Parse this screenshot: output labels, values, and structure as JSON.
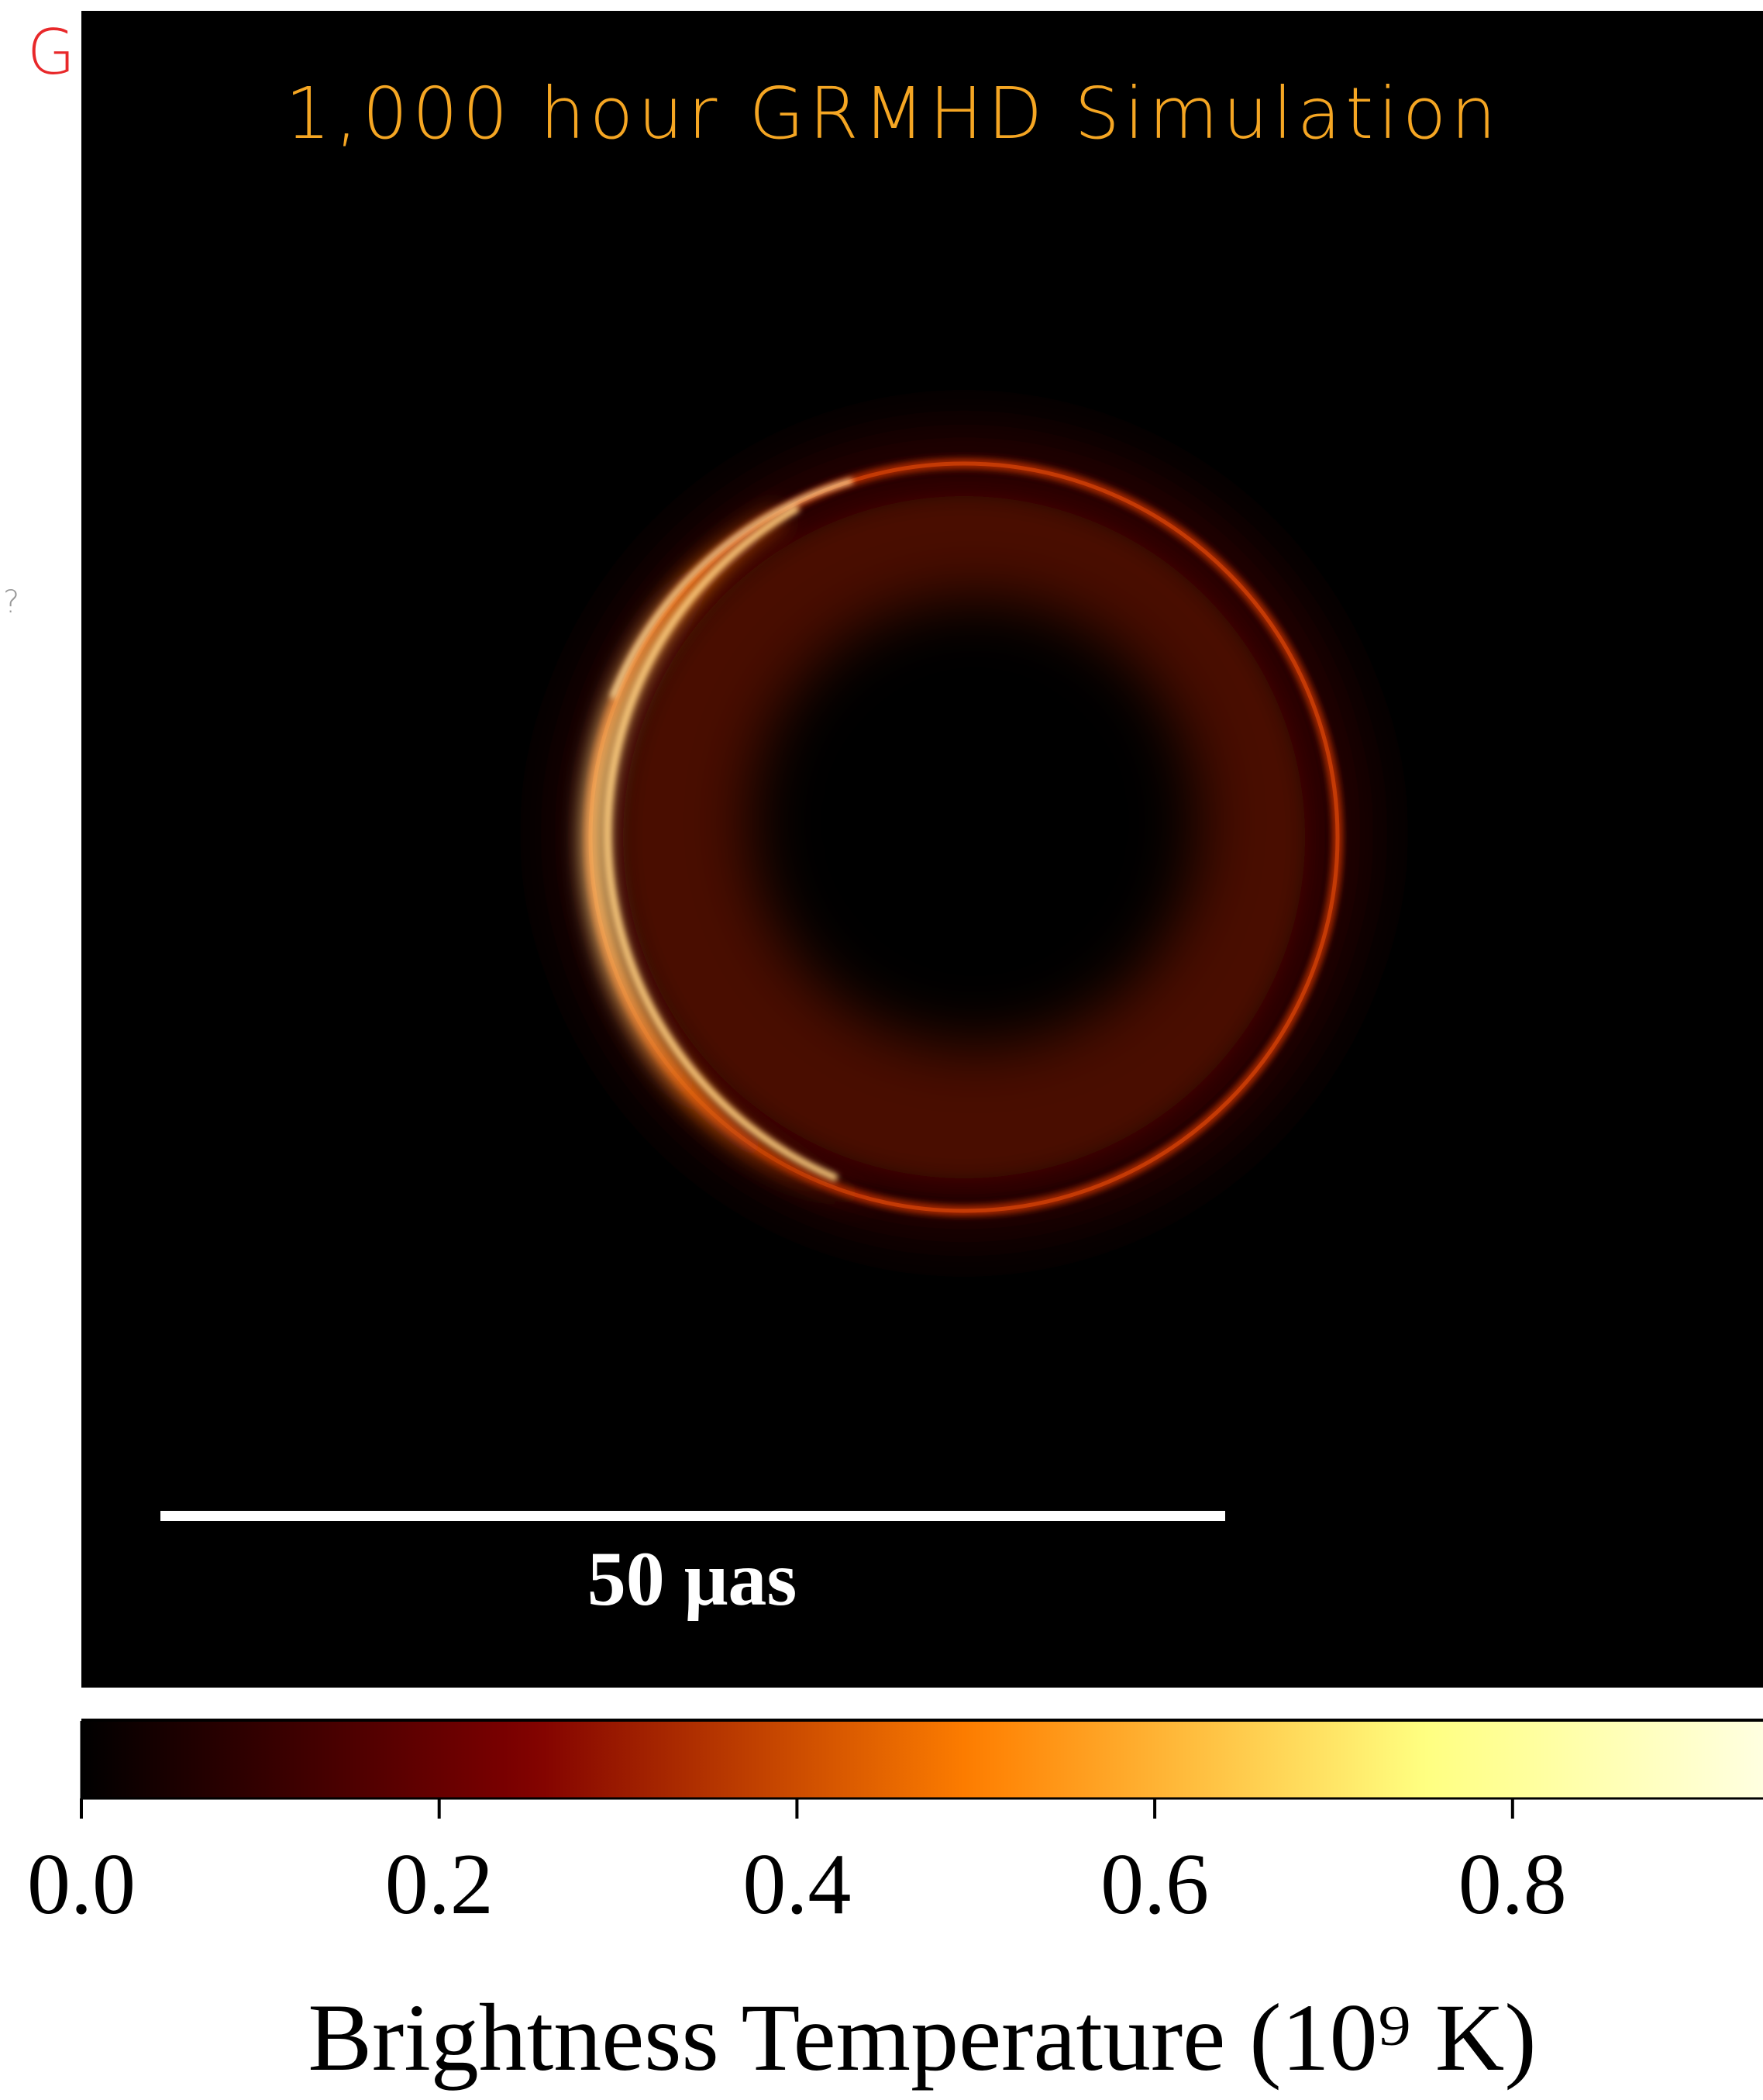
{
  "title": "1,000 hour GRMHD Simulation",
  "annotations": [
    "G",
    "?"
  ],
  "chart_data": {
    "type": "image",
    "scale_bar_label": "50 μas",
    "colorbar": {
      "cmap": "afmhot",
      "clim": [
        0,
        0.94
      ],
      "ticks": [
        {
          "value": 0,
          "label": "0.0"
        },
        {
          "value": 0.2,
          "label": "0.2"
        },
        {
          "value": 0.4,
          "label": "0.4"
        },
        {
          "value": 0.6,
          "label": "0.6"
        },
        {
          "value": 0.8,
          "label": "0.8"
        }
      ],
      "label": "Brightness Temperature (10⁹ K)"
    }
  }
}
